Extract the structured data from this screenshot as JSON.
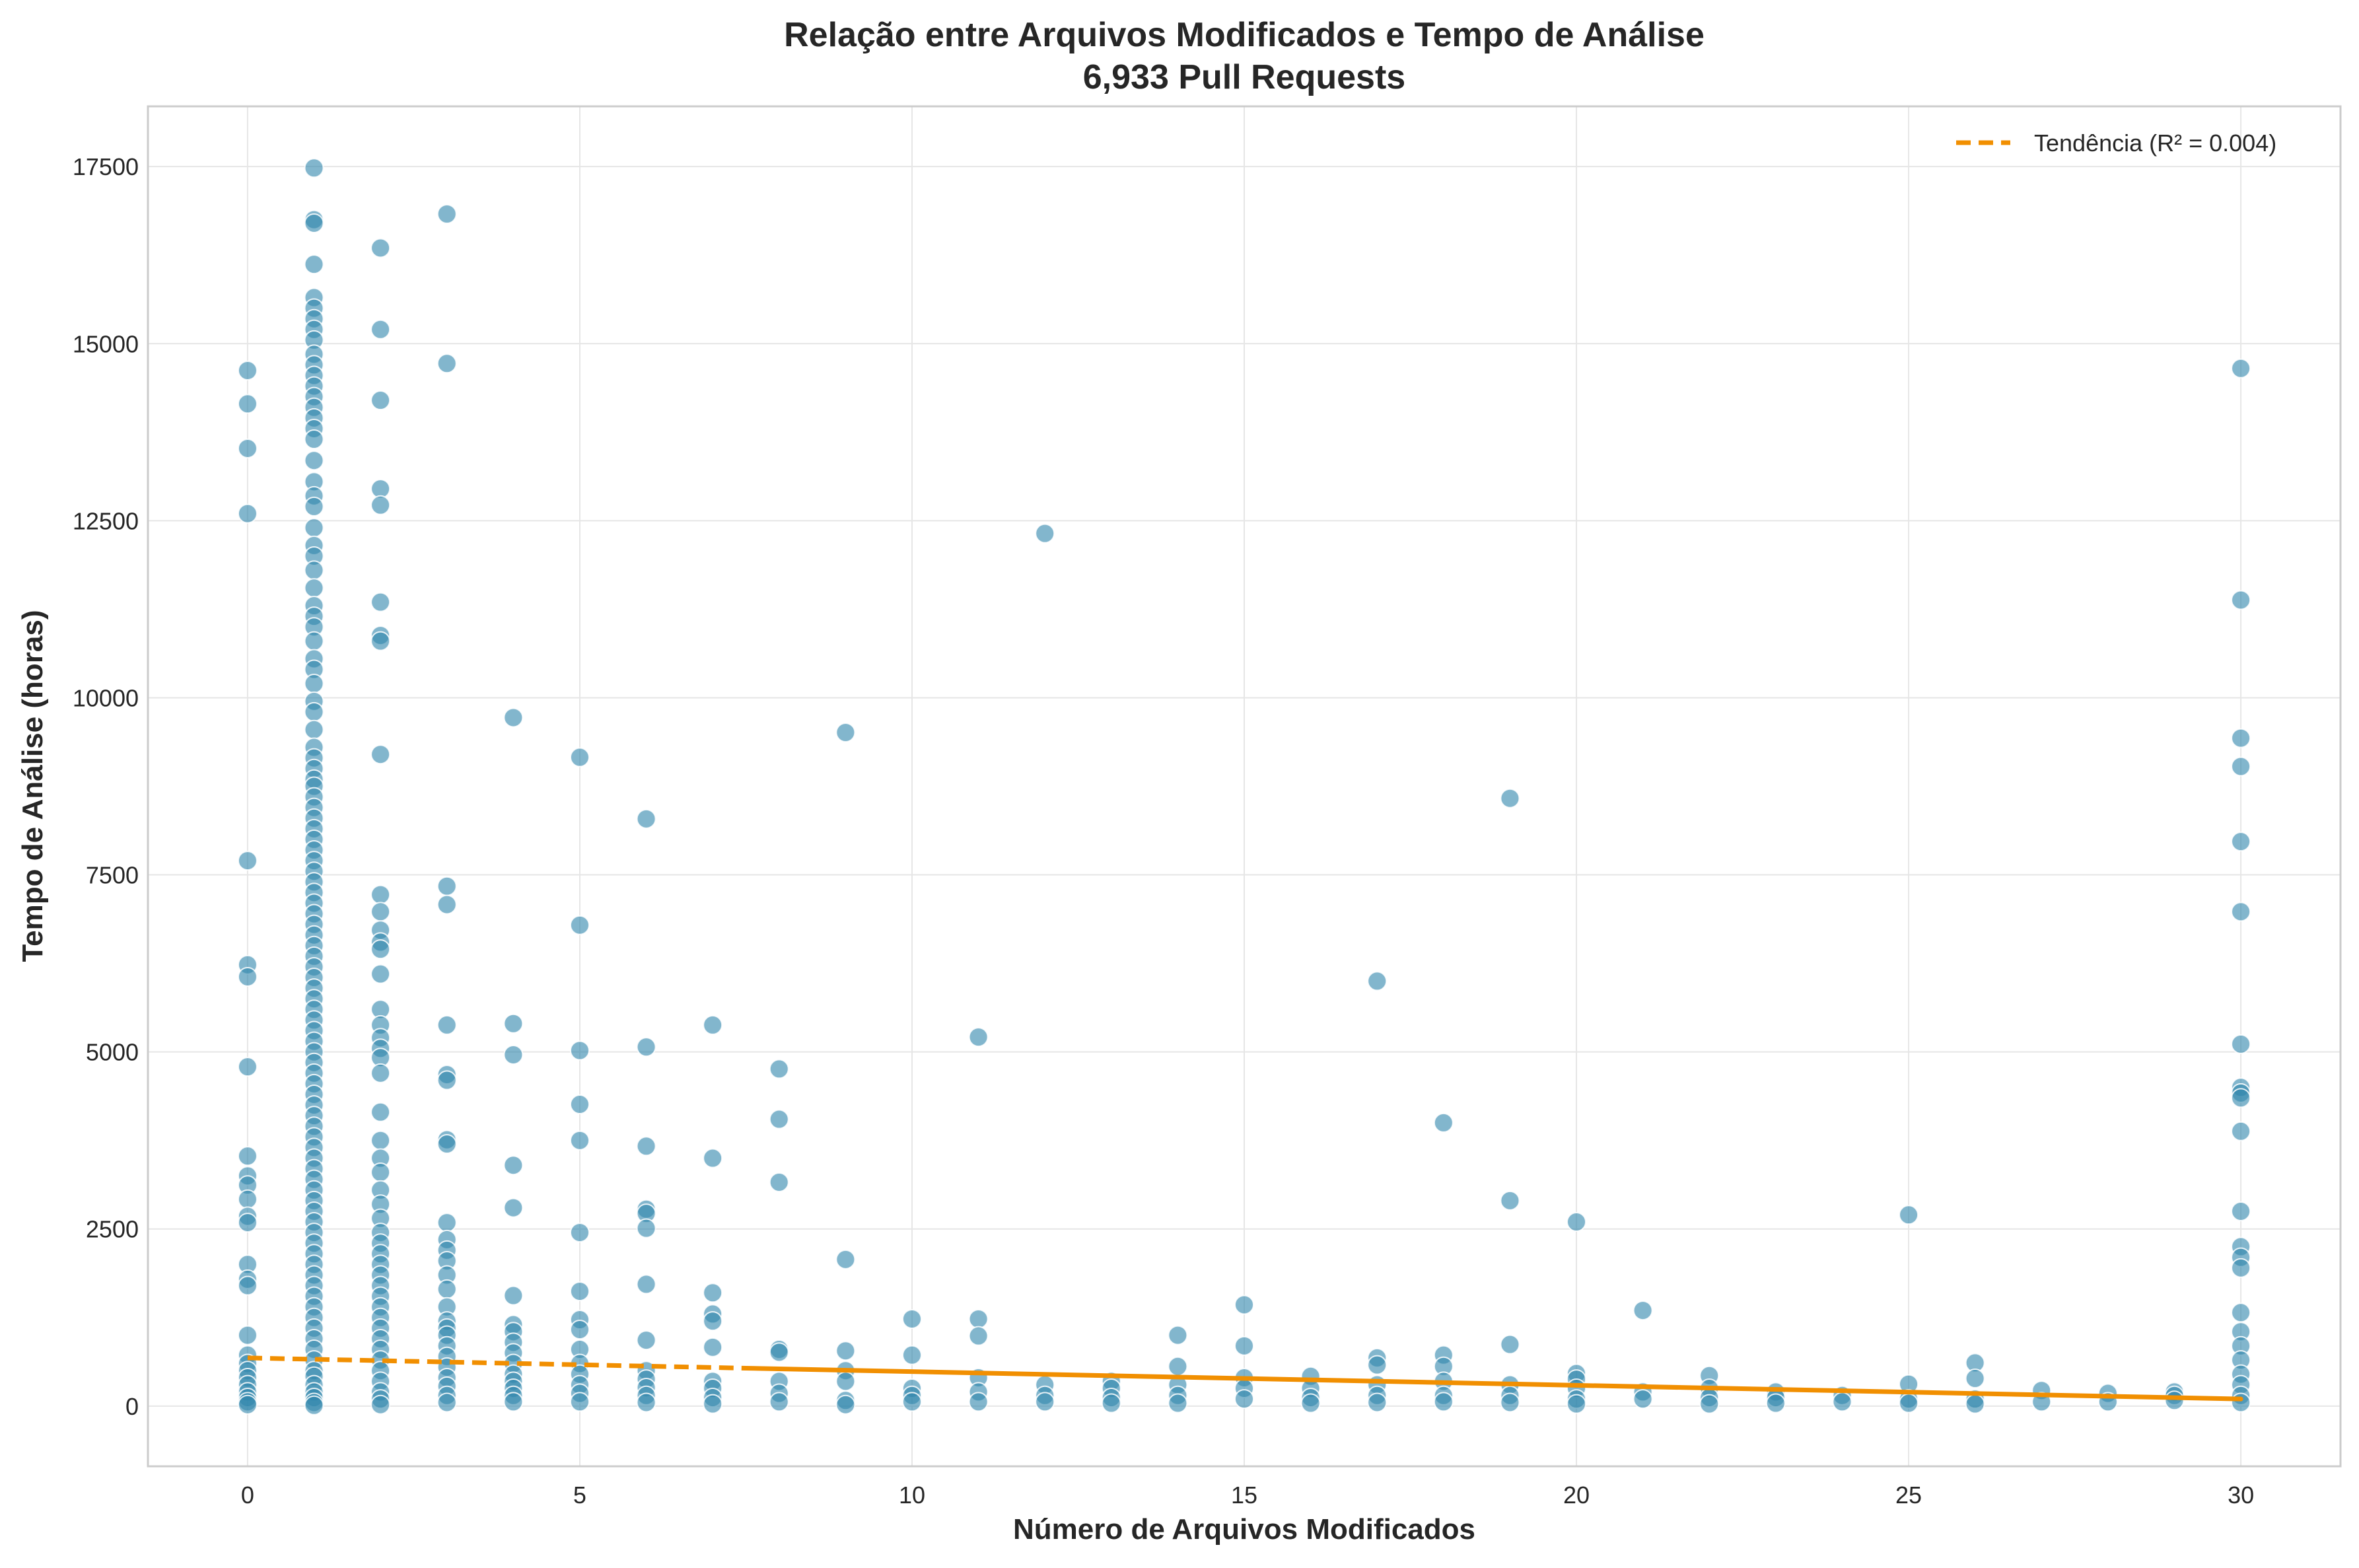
{
  "chart_data": {
    "type": "scatter",
    "title": "Relação entre Arquivos Modificados e Tempo de Análise",
    "subtitle": "6,933 Pull Requests",
    "xlabel": "Número de Arquivos Modificados",
    "ylabel": "Tempo de Análise (horas)",
    "xlim": [
      -1.5,
      31.5
    ],
    "ylim": [
      -850,
      18350
    ],
    "xticks": [
      0,
      5,
      10,
      15,
      20,
      25,
      30
    ],
    "yticks": [
      0,
      2500,
      5000,
      7500,
      10000,
      12500,
      15000,
      17500
    ],
    "grid": true,
    "legend_position": "top-right",
    "colors": {
      "points": "#2E86AB",
      "trend": "#F18F01",
      "grid": "#e6e6e6",
      "frame": "#cccccc",
      "text": "#262626"
    },
    "trend": {
      "label": "Tendência (R² = 0.004)",
      "x": [
        0,
        30
      ],
      "y": [
        680,
        100
      ],
      "style": "dashed within dense range, solid beyond"
    },
    "points": [
      [
        0,
        14620
      ],
      [
        0,
        14150
      ],
      [
        0,
        13520
      ],
      [
        0,
        12600
      ],
      [
        0,
        7700
      ],
      [
        0,
        6230
      ],
      [
        0,
        6060
      ],
      [
        0,
        4790
      ],
      [
        0,
        3530
      ],
      [
        0,
        3250
      ],
      [
        0,
        3120
      ],
      [
        0,
        2920
      ],
      [
        0,
        2680
      ],
      [
        0,
        2590
      ],
      [
        0,
        2000
      ],
      [
        0,
        1790
      ],
      [
        0,
        1700
      ],
      [
        0,
        1000
      ],
      [
        0,
        720
      ],
      [
        0,
        600
      ],
      [
        0,
        500
      ],
      [
        0,
        400
      ],
      [
        0,
        300
      ],
      [
        0,
        200
      ],
      [
        0,
        120
      ],
      [
        0,
        60
      ],
      [
        0,
        20
      ],
      [
        1,
        17480
      ],
      [
        1,
        16750
      ],
      [
        1,
        16700
      ],
      [
        1,
        16120
      ],
      [
        1,
        15650
      ],
      [
        1,
        15500
      ],
      [
        1,
        15350
      ],
      [
        1,
        15200
      ],
      [
        1,
        15050
      ],
      [
        1,
        14850
      ],
      [
        1,
        14700
      ],
      [
        1,
        14550
      ],
      [
        1,
        14400
      ],
      [
        1,
        14250
      ],
      [
        1,
        14100
      ],
      [
        1,
        13950
      ],
      [
        1,
        13800
      ],
      [
        1,
        13650
      ],
      [
        1,
        13350
      ],
      [
        1,
        13050
      ],
      [
        1,
        12850
      ],
      [
        1,
        12700
      ],
      [
        1,
        12400
      ],
      [
        1,
        12150
      ],
      [
        1,
        12000
      ],
      [
        1,
        11800
      ],
      [
        1,
        11550
      ],
      [
        1,
        11300
      ],
      [
        1,
        11150
      ],
      [
        1,
        11000
      ],
      [
        1,
        10800
      ],
      [
        1,
        10550
      ],
      [
        1,
        10400
      ],
      [
        1,
        10200
      ],
      [
        1,
        9950
      ],
      [
        1,
        9800
      ],
      [
        1,
        9550
      ],
      [
        1,
        9300
      ],
      [
        1,
        9150
      ],
      [
        1,
        9000
      ],
      [
        1,
        8850
      ],
      [
        1,
        8750
      ],
      [
        1,
        8600
      ],
      [
        1,
        8450
      ],
      [
        1,
        8300
      ],
      [
        1,
        8150
      ],
      [
        1,
        8000
      ],
      [
        1,
        7850
      ],
      [
        1,
        7700
      ],
      [
        1,
        7550
      ],
      [
        1,
        7400
      ],
      [
        1,
        7250
      ],
      [
        1,
        7100
      ],
      [
        1,
        6950
      ],
      [
        1,
        6800
      ],
      [
        1,
        6650
      ],
      [
        1,
        6500
      ],
      [
        1,
        6350
      ],
      [
        1,
        6200
      ],
      [
        1,
        6050
      ],
      [
        1,
        5900
      ],
      [
        1,
        5750
      ],
      [
        1,
        5600
      ],
      [
        1,
        5450
      ],
      [
        1,
        5300
      ],
      [
        1,
        5150
      ],
      [
        1,
        5000
      ],
      [
        1,
        4850
      ],
      [
        1,
        4700
      ],
      [
        1,
        4550
      ],
      [
        1,
        4400
      ],
      [
        1,
        4250
      ],
      [
        1,
        4100
      ],
      [
        1,
        3950
      ],
      [
        1,
        3800
      ],
      [
        1,
        3650
      ],
      [
        1,
        3500
      ],
      [
        1,
        3350
      ],
      [
        1,
        3200
      ],
      [
        1,
        3050
      ],
      [
        1,
        2900
      ],
      [
        1,
        2750
      ],
      [
        1,
        2600
      ],
      [
        1,
        2450
      ],
      [
        1,
        2300
      ],
      [
        1,
        2150
      ],
      [
        1,
        2000
      ],
      [
        1,
        1850
      ],
      [
        1,
        1700
      ],
      [
        1,
        1550
      ],
      [
        1,
        1400
      ],
      [
        1,
        1250
      ],
      [
        1,
        1100
      ],
      [
        1,
        950
      ],
      [
        1,
        800
      ],
      [
        1,
        650
      ],
      [
        1,
        500
      ],
      [
        1,
        420
      ],
      [
        1,
        300
      ],
      [
        1,
        200
      ],
      [
        1,
        120
      ],
      [
        1,
        50
      ],
      [
        1,
        10
      ],
      [
        2,
        16350
      ],
      [
        2,
        15200
      ],
      [
        2,
        14200
      ],
      [
        2,
        12950
      ],
      [
        2,
        12720
      ],
      [
        2,
        11350
      ],
      [
        2,
        10880
      ],
      [
        2,
        10800
      ],
      [
        2,
        9200
      ],
      [
        2,
        7220
      ],
      [
        2,
        6980
      ],
      [
        2,
        6720
      ],
      [
        2,
        6550
      ],
      [
        2,
        6450
      ],
      [
        2,
        6100
      ],
      [
        2,
        5600
      ],
      [
        2,
        5380
      ],
      [
        2,
        5200
      ],
      [
        2,
        5050
      ],
      [
        2,
        4920
      ],
      [
        2,
        4700
      ],
      [
        2,
        4150
      ],
      [
        2,
        3750
      ],
      [
        2,
        3500
      ],
      [
        2,
        3300
      ],
      [
        2,
        3050
      ],
      [
        2,
        2850
      ],
      [
        2,
        2650
      ],
      [
        2,
        2450
      ],
      [
        2,
        2300
      ],
      [
        2,
        2150
      ],
      [
        2,
        2000
      ],
      [
        2,
        1850
      ],
      [
        2,
        1700
      ],
      [
        2,
        1550
      ],
      [
        2,
        1400
      ],
      [
        2,
        1250
      ],
      [
        2,
        1100
      ],
      [
        2,
        950
      ],
      [
        2,
        800
      ],
      [
        2,
        650
      ],
      [
        2,
        500
      ],
      [
        2,
        350
      ],
      [
        2,
        200
      ],
      [
        2,
        100
      ],
      [
        2,
        20
      ],
      [
        3,
        16830
      ],
      [
        3,
        14720
      ],
      [
        3,
        7340
      ],
      [
        3,
        7080
      ],
      [
        3,
        5380
      ],
      [
        3,
        4680
      ],
      [
        3,
        4600
      ],
      [
        3,
        3760
      ],
      [
        3,
        3700
      ],
      [
        3,
        2590
      ],
      [
        3,
        2350
      ],
      [
        3,
        2200
      ],
      [
        3,
        2050
      ],
      [
        3,
        1850
      ],
      [
        3,
        1650
      ],
      [
        3,
        1400
      ],
      [
        3,
        1200
      ],
      [
        3,
        1100
      ],
      [
        3,
        1000
      ],
      [
        3,
        850
      ],
      [
        3,
        700
      ],
      [
        3,
        550
      ],
      [
        3,
        400
      ],
      [
        3,
        280
      ],
      [
        3,
        150
      ],
      [
        3,
        50
      ],
      [
        4,
        9720
      ],
      [
        4,
        5400
      ],
      [
        4,
        4960
      ],
      [
        4,
        3400
      ],
      [
        4,
        2800
      ],
      [
        4,
        1560
      ],
      [
        4,
        1150
      ],
      [
        4,
        1050
      ],
      [
        4,
        900
      ],
      [
        4,
        750
      ],
      [
        4,
        600
      ],
      [
        4,
        450
      ],
      [
        4,
        350
      ],
      [
        4,
        250
      ],
      [
        4,
        150
      ],
      [
        4,
        60
      ],
      [
        5,
        9160
      ],
      [
        5,
        6790
      ],
      [
        5,
        5020
      ],
      [
        5,
        4260
      ],
      [
        5,
        3750
      ],
      [
        5,
        2450
      ],
      [
        5,
        1620
      ],
      [
        5,
        1220
      ],
      [
        5,
        1080
      ],
      [
        5,
        800
      ],
      [
        5,
        600
      ],
      [
        5,
        450
      ],
      [
        5,
        300
      ],
      [
        5,
        180
      ],
      [
        5,
        60
      ],
      [
        6,
        8290
      ],
      [
        6,
        5070
      ],
      [
        6,
        3670
      ],
      [
        6,
        2780
      ],
      [
        6,
        2720
      ],
      [
        6,
        2510
      ],
      [
        6,
        1720
      ],
      [
        6,
        930
      ],
      [
        6,
        500
      ],
      [
        6,
        380
      ],
      [
        6,
        260
      ],
      [
        6,
        150
      ],
      [
        6,
        50
      ],
      [
        7,
        5380
      ],
      [
        7,
        3500
      ],
      [
        7,
        1600
      ],
      [
        7,
        1300
      ],
      [
        7,
        1200
      ],
      [
        7,
        830
      ],
      [
        7,
        350
      ],
      [
        7,
        250
      ],
      [
        7,
        120
      ],
      [
        7,
        30
      ],
      [
        8,
        4760
      ],
      [
        8,
        4050
      ],
      [
        8,
        3160
      ],
      [
        8,
        800
      ],
      [
        8,
        760
      ],
      [
        8,
        350
      ],
      [
        8,
        180
      ],
      [
        8,
        60
      ],
      [
        9,
        9510
      ],
      [
        9,
        2070
      ],
      [
        9,
        780
      ],
      [
        9,
        500
      ],
      [
        9,
        350
      ],
      [
        9,
        80
      ],
      [
        9,
        20
      ],
      [
        10,
        1230
      ],
      [
        10,
        720
      ],
      [
        10,
        250
      ],
      [
        10,
        150
      ],
      [
        10,
        60
      ],
      [
        11,
        5210
      ],
      [
        11,
        1230
      ],
      [
        11,
        990
      ],
      [
        11,
        400
      ],
      [
        11,
        200
      ],
      [
        11,
        60
      ],
      [
        12,
        12320
      ],
      [
        12,
        300
      ],
      [
        12,
        150
      ],
      [
        12,
        60
      ],
      [
        13,
        350
      ],
      [
        13,
        250
      ],
      [
        13,
        120
      ],
      [
        13,
        40
      ],
      [
        14,
        1000
      ],
      [
        14,
        560
      ],
      [
        14,
        300
      ],
      [
        14,
        150
      ],
      [
        14,
        40
      ],
      [
        15,
        1430
      ],
      [
        15,
        850
      ],
      [
        15,
        400
      ],
      [
        15,
        250
      ],
      [
        15,
        100
      ],
      [
        16,
        420
      ],
      [
        16,
        250
      ],
      [
        16,
        120
      ],
      [
        16,
        40
      ],
      [
        17,
        6000
      ],
      [
        17,
        680
      ],
      [
        17,
        580
      ],
      [
        17,
        300
      ],
      [
        17,
        150
      ],
      [
        17,
        50
      ],
      [
        18,
        4000
      ],
      [
        18,
        720
      ],
      [
        18,
        560
      ],
      [
        18,
        350
      ],
      [
        18,
        150
      ],
      [
        18,
        60
      ],
      [
        19,
        8580
      ],
      [
        19,
        2900
      ],
      [
        19,
        870
      ],
      [
        19,
        300
      ],
      [
        19,
        150
      ],
      [
        19,
        50
      ],
      [
        20,
        2600
      ],
      [
        20,
        460
      ],
      [
        20,
        380
      ],
      [
        20,
        250
      ],
      [
        20,
        100
      ],
      [
        20,
        30
      ],
      [
        21,
        1350
      ],
      [
        21,
        200
      ],
      [
        21,
        100
      ],
      [
        22,
        430
      ],
      [
        22,
        250
      ],
      [
        22,
        120
      ],
      [
        22,
        30
      ],
      [
        23,
        200
      ],
      [
        23,
        120
      ],
      [
        23,
        40
      ],
      [
        24,
        150
      ],
      [
        24,
        60
      ],
      [
        25,
        2700
      ],
      [
        25,
        310
      ],
      [
        25,
        100
      ],
      [
        25,
        40
      ],
      [
        26,
        610
      ],
      [
        26,
        390
      ],
      [
        26,
        100
      ],
      [
        26,
        30
      ],
      [
        27,
        220
      ],
      [
        27,
        60
      ],
      [
        28,
        180
      ],
      [
        28,
        60
      ],
      [
        29,
        200
      ],
      [
        29,
        150
      ],
      [
        29,
        80
      ],
      [
        30,
        14650
      ],
      [
        30,
        11380
      ],
      [
        30,
        9430
      ],
      [
        30,
        9030
      ],
      [
        30,
        7970
      ],
      [
        30,
        6980
      ],
      [
        30,
        5110
      ],
      [
        30,
        4500
      ],
      [
        30,
        4420
      ],
      [
        30,
        4350
      ],
      [
        30,
        3880
      ],
      [
        30,
        2750
      ],
      [
        30,
        2250
      ],
      [
        30,
        2100
      ],
      [
        30,
        1950
      ],
      [
        30,
        1320
      ],
      [
        30,
        1050
      ],
      [
        30,
        850
      ],
      [
        30,
        650
      ],
      [
        30,
        450
      ],
      [
        30,
        300
      ],
      [
        30,
        150
      ],
      [
        30,
        50
      ]
    ]
  }
}
